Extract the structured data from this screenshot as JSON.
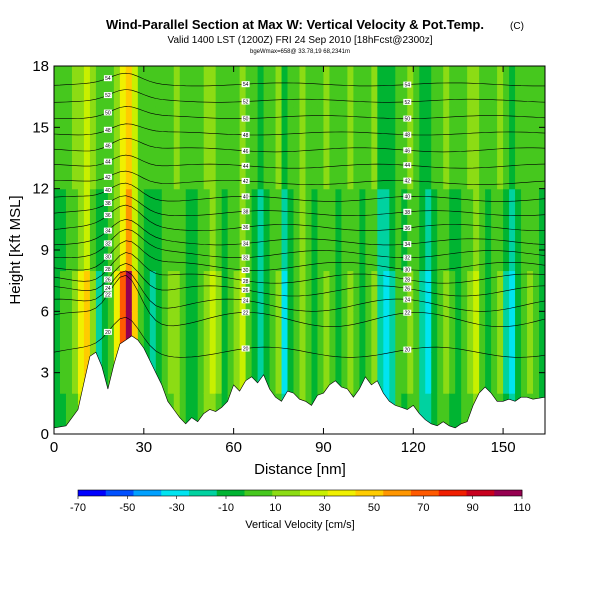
{
  "chart_data": {
    "type": "heatmap",
    "title": "Wind-Parallel Section at Max W: Vertical Velocity & Pot.Temp.",
    "title_suffix": "(C)",
    "subtitle": "Valid 1400 LST (1200Z) FRI 24 Sep 2010 [18hFcst@2300z]",
    "subtitle2": "bgeWmax=658@ 33.78,19 68,2341m",
    "xlabel": "Distance [nm]",
    "ylabel": "Height [Kft MSL]",
    "xlim": [
      0,
      164
    ],
    "ylim": [
      0,
      18
    ],
    "x_ticks": [
      "0",
      "30",
      "60",
      "90",
      "120",
      "150"
    ],
    "y_ticks": [
      "0",
      "3",
      "6",
      "9",
      "12",
      "15",
      "18"
    ],
    "colorbar": {
      "label": "Vertical Velocity [cm/s]",
      "ticks": [
        "-70",
        "-50",
        "-30",
        "-10",
        "10",
        "30",
        "50",
        "70",
        "90",
        "110"
      ],
      "colors": [
        "#0000ff",
        "#0050ff",
        "#00a0ff",
        "#00e4f0",
        "#00d2a0",
        "#00b432",
        "#46c81e",
        "#8cdc14",
        "#c8f000",
        "#f0f000",
        "#ffcc00",
        "#ff9600",
        "#ff5a00",
        "#f01e00",
        "#c8001e",
        "#960050"
      ]
    },
    "terrain": [
      [
        0,
        0.3
      ],
      [
        4,
        0.4
      ],
      [
        8,
        1.2
      ],
      [
        10,
        2.5
      ],
      [
        12,
        3.8
      ],
      [
        14,
        4.0
      ],
      [
        16,
        3.3
      ],
      [
        18,
        2.2
      ],
      [
        20,
        3.4
      ],
      [
        22,
        4.4
      ],
      [
        24,
        4.6
      ],
      [
        26,
        4.8
      ],
      [
        28,
        4.6
      ],
      [
        30,
        4.2
      ],
      [
        32,
        3.6
      ],
      [
        34,
        3.0
      ],
      [
        36,
        2.4
      ],
      [
        38,
        1.6
      ],
      [
        40,
        1.2
      ],
      [
        42,
        0.8
      ],
      [
        44,
        0.5
      ],
      [
        46,
        0.8
      ],
      [
        48,
        0.6
      ],
      [
        50,
        1.0
      ],
      [
        52,
        1.2
      ],
      [
        54,
        1.1
      ],
      [
        56,
        1.3
      ],
      [
        58,
        1.6
      ],
      [
        60,
        2.4
      ],
      [
        62,
        2.1
      ],
      [
        64,
        2.6
      ],
      [
        66,
        2.8
      ],
      [
        68,
        2.5
      ],
      [
        70,
        2.9
      ],
      [
        72,
        2.2
      ],
      [
        74,
        1.8
      ],
      [
        76,
        1.6
      ],
      [
        78,
        2.1
      ],
      [
        80,
        2.0
      ],
      [
        82,
        1.7
      ],
      [
        84,
        1.6
      ],
      [
        86,
        1.4
      ],
      [
        88,
        1.9
      ],
      [
        90,
        2.0
      ],
      [
        92,
        2.4
      ],
      [
        94,
        2.6
      ],
      [
        96,
        2.3
      ],
      [
        98,
        2.2
      ],
      [
        100,
        1.8
      ],
      [
        102,
        2.2
      ],
      [
        104,
        2.8
      ],
      [
        106,
        2.4
      ],
      [
        108,
        2.6
      ],
      [
        110,
        2.0
      ],
      [
        112,
        1.6
      ],
      [
        114,
        1.4
      ],
      [
        116,
        1.3
      ],
      [
        118,
        1.2
      ],
      [
        120,
        1.4
      ],
      [
        122,
        1.0
      ],
      [
        124,
        0.7
      ],
      [
        126,
        0.5
      ],
      [
        128,
        0.4
      ],
      [
        130,
        0.6
      ],
      [
        132,
        0.4
      ],
      [
        134,
        0.3
      ],
      [
        136,
        0.5
      ],
      [
        138,
        0.6
      ],
      [
        140,
        1.4
      ],
      [
        142,
        2.0
      ],
      [
        144,
        2.3
      ],
      [
        146,
        2.0
      ],
      [
        148,
        1.6
      ],
      [
        150,
        1.6
      ],
      [
        152,
        1.7
      ],
      [
        154,
        1.6
      ],
      [
        156,
        1.8
      ],
      [
        158,
        1.8
      ],
      [
        160,
        1.7
      ],
      [
        164,
        1.8
      ]
    ],
    "columns": [
      {
        "x": 0,
        "w": -4
      },
      {
        "x": 2,
        "w": 2
      },
      {
        "x": 4,
        "w": 8
      },
      {
        "x": 6,
        "w": 18
      },
      {
        "x": 8,
        "w": 40
      },
      {
        "x": 10,
        "w": 55
      },
      {
        "x": 12,
        "w": 20
      },
      {
        "x": 14,
        "w": -12
      },
      {
        "x": 16,
        "w": -6
      },
      {
        "x": 18,
        "w": 12
      },
      {
        "x": 20,
        "w": 40
      },
      {
        "x": 22,
        "w": 80
      },
      {
        "x": 24,
        "w": 110
      },
      {
        "x": 26,
        "w": 60
      },
      {
        "x": 28,
        "w": 10
      },
      {
        "x": 30,
        "w": -8
      },
      {
        "x": 32,
        "w": -14
      },
      {
        "x": 34,
        "w": -4
      },
      {
        "x": 36,
        "w": 6
      },
      {
        "x": 38,
        "w": 14
      },
      {
        "x": 40,
        "w": 20
      },
      {
        "x": 42,
        "w": 10
      },
      {
        "x": 44,
        "w": 0
      },
      {
        "x": 46,
        "w": -10
      },
      {
        "x": 48,
        "w": 6
      },
      {
        "x": 50,
        "w": 22
      },
      {
        "x": 52,
        "w": 34
      },
      {
        "x": 54,
        "w": 14
      },
      {
        "x": 56,
        "w": -4
      },
      {
        "x": 58,
        "w": 6
      },
      {
        "x": 60,
        "w": 14
      },
      {
        "x": 62,
        "w": 26
      },
      {
        "x": 64,
        "w": 8
      },
      {
        "x": 66,
        "w": -6
      },
      {
        "x": 68,
        "w": -20
      },
      {
        "x": 70,
        "w": -4
      },
      {
        "x": 72,
        "w": 8
      },
      {
        "x": 74,
        "w": 16
      },
      {
        "x": 76,
        "w": -28
      },
      {
        "x": 78,
        "w": -10
      },
      {
        "x": 80,
        "w": 6
      },
      {
        "x": 82,
        "w": 24
      },
      {
        "x": 84,
        "w": 12
      },
      {
        "x": 86,
        "w": -4
      },
      {
        "x": 88,
        "w": 6
      },
      {
        "x": 90,
        "w": 16
      },
      {
        "x": 92,
        "w": 4
      },
      {
        "x": 94,
        "w": -8
      },
      {
        "x": 96,
        "w": 6
      },
      {
        "x": 98,
        "w": 18
      },
      {
        "x": 100,
        "w": 8
      },
      {
        "x": 102,
        "w": -4
      },
      {
        "x": 104,
        "w": 10
      },
      {
        "x": 106,
        "w": 22
      },
      {
        "x": 108,
        "w": -22
      },
      {
        "x": 110,
        "w": -34
      },
      {
        "x": 112,
        "w": -16
      },
      {
        "x": 114,
        "w": 6
      },
      {
        "x": 116,
        "w": 2
      },
      {
        "x": 118,
        "w": 18
      },
      {
        "x": 120,
        "w": 10
      },
      {
        "x": 122,
        "w": -16
      },
      {
        "x": 124,
        "w": -30
      },
      {
        "x": 126,
        "w": -10
      },
      {
        "x": 128,
        "w": 6
      },
      {
        "x": 130,
        "w": 16
      },
      {
        "x": 132,
        "w": 2
      },
      {
        "x": 134,
        "w": -8
      },
      {
        "x": 136,
        "w": 4
      },
      {
        "x": 138,
        "w": 18
      },
      {
        "x": 140,
        "w": 30
      },
      {
        "x": 142,
        "w": 12
      },
      {
        "x": 144,
        "w": -6
      },
      {
        "x": 146,
        "w": 6
      },
      {
        "x": 148,
        "w": 18
      },
      {
        "x": 150,
        "w": -14
      },
      {
        "x": 152,
        "w": -24
      },
      {
        "x": 154,
        "w": -6
      },
      {
        "x": 156,
        "w": 8
      },
      {
        "x": 158,
        "w": 14
      },
      {
        "x": 160,
        "w": 4
      },
      {
        "x": 162,
        "w": -4
      }
    ],
    "theta_contours": [
      {
        "label": "20",
        "base": 4.0,
        "dip": 1.0
      },
      {
        "label": "22",
        "base": 5.6,
        "dip": 1.4
      },
      {
        "label": "24",
        "base": 6.3,
        "dip": 1.2
      },
      {
        "label": "26",
        "base": 7.0,
        "dip": 1.0
      },
      {
        "label": "28",
        "base": 7.6,
        "dip": 0.9
      },
      {
        "label": "30",
        "base": 8.2,
        "dip": 0.8
      },
      {
        "label": "32",
        "base": 8.8,
        "dip": 0.7
      },
      {
        "label": "34",
        "base": 9.4,
        "dip": 0.6
      },
      {
        "label": "36",
        "base": 10.1,
        "dip": 0.6
      },
      {
        "label": "38",
        "base": 10.8,
        "dip": 0.5
      },
      {
        "label": "40",
        "base": 11.5,
        "dip": 0.5
      },
      {
        "label": "42",
        "base": 12.3,
        "dip": 0.4
      },
      {
        "label": "44",
        "base": 13.1,
        "dip": 0.4
      },
      {
        "label": "46",
        "base": 13.9,
        "dip": 0.4
      },
      {
        "label": "48",
        "base": 14.7,
        "dip": 0.3
      },
      {
        "label": "50",
        "base": 15.5,
        "dip": 0.3
      },
      {
        "label": "52",
        "base": 16.3,
        "dip": 0.3
      },
      {
        "label": "54",
        "base": 17.1,
        "dip": 0.3
      }
    ]
  }
}
